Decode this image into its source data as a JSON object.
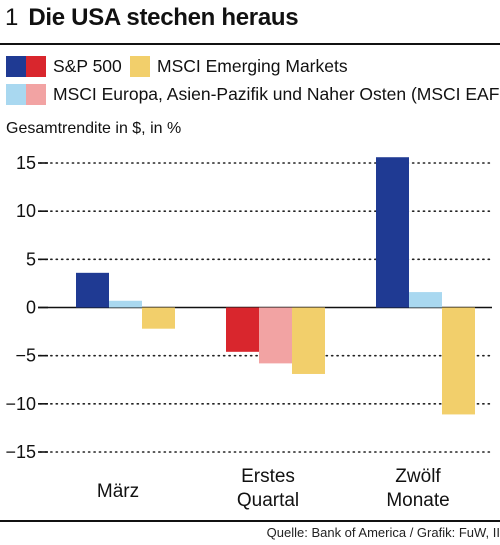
{
  "header": {
    "number": "1",
    "title": "Die USA stechen heraus"
  },
  "legend": [
    {
      "label": "S&P 500",
      "colors": [
        "#1f3a93",
        "#d9262d"
      ]
    },
    {
      "label": "MSCI Emerging Markets",
      "colors": [
        "#f2cf6b"
      ]
    },
    {
      "label": "MSCI Europa, Asien-Pazifik und Naher Osten (MSCI EAFE)",
      "colors": [
        "#a9d8f0",
        "#f2a3a3"
      ]
    }
  ],
  "footer": {
    "source": "Quelle: Bank of America / Grafik: FuW, II"
  },
  "chart_data": {
    "type": "bar",
    "ylabel": "Gesamtrendite in $, in %",
    "ylim": [
      -15,
      15
    ],
    "yticks": [
      15,
      10,
      5,
      0,
      -5,
      -10,
      -15
    ],
    "grid": "horizontal dotted",
    "categories": [
      "März",
      "Erstes Quartal",
      "Zwölf Monate"
    ],
    "series": [
      {
        "name": "S&P 500",
        "values": [
          3.6,
          -4.6,
          15.6
        ],
        "colors_pos": "#1f3a93",
        "colors_neg": "#d9262d"
      },
      {
        "name": "MSCI Europa, Asien-Pazifik und Naher Osten (MSCI EAFE)",
        "values": [
          0.7,
          -5.8,
          1.6
        ],
        "colors_pos": "#a9d8f0",
        "colors_neg": "#f2a3a3"
      },
      {
        "name": "MSCI Emerging Markets",
        "values": [
          -2.2,
          -6.9,
          -11.1
        ],
        "colors_pos": "#f2cf6b",
        "colors_neg": "#f2cf6b"
      }
    ]
  }
}
